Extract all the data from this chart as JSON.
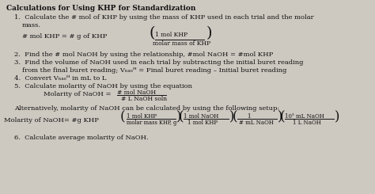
{
  "bg_color": "#cdc8c0",
  "text_color": "#111111",
  "title": "Calculations for Using KHP for Standardization",
  "fig_w": 4.74,
  "fig_h": 2.45,
  "dpi": 100
}
